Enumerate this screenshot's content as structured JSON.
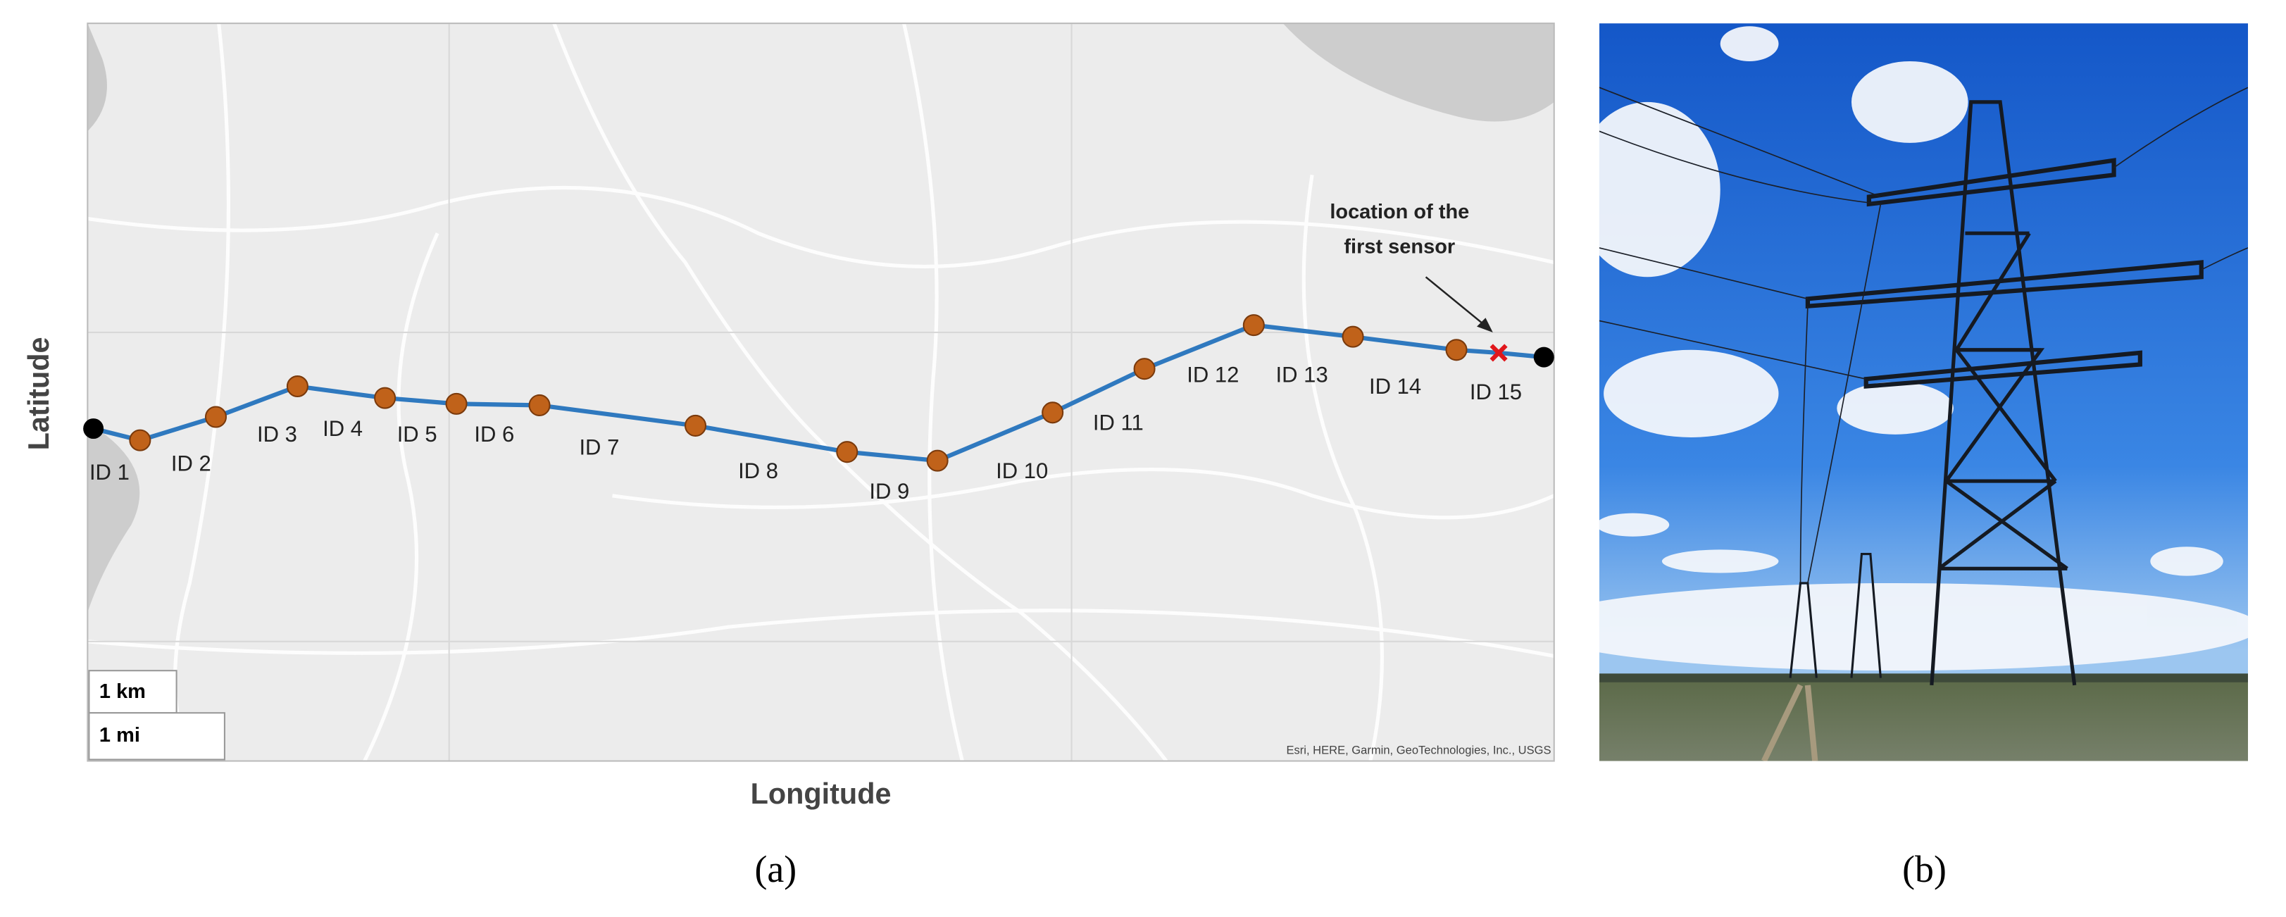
{
  "panel_a": {
    "y_axis_label": "Latitude",
    "x_axis_label": "Longitude",
    "annotation": "location of the first sensor",
    "nodes": [
      "ID 1",
      "ID 2",
      "ID 3",
      "ID 4",
      "ID 5",
      "ID 6",
      "ID 7",
      "ID 8",
      "ID 9",
      "ID 10",
      "ID 11",
      "ID 12",
      "ID 13",
      "ID 14",
      "ID 15"
    ],
    "scale_km": "1 km",
    "scale_mi": "1 mi",
    "attribution": "Esri, HERE, Garmin, GeoTechnologies, Inc., USGS",
    "caption": "(a)"
  },
  "panel_b": {
    "caption": "(b)"
  }
}
